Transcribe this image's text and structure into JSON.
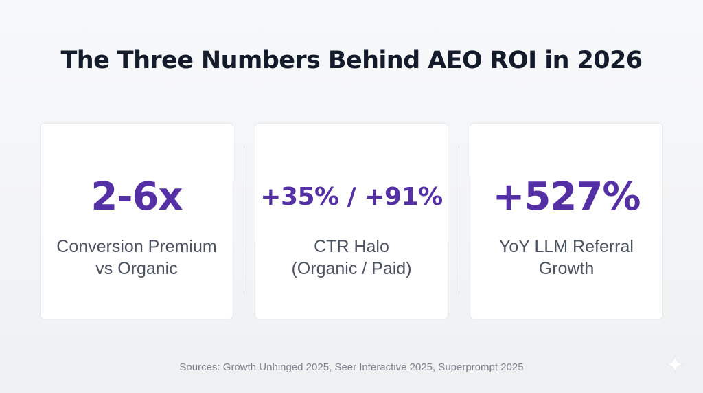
{
  "title": "The Three Numbers Behind AEO ROI in 2026",
  "stats": [
    {
      "value": "2-6x",
      "label_lines": [
        "Conversion Premium",
        "vs Organic"
      ]
    },
    {
      "value": "+35% / +91%",
      "label_lines": [
        "CTR Halo",
        "(Organic / Paid)"
      ]
    },
    {
      "value": "+527%",
      "label_lines": [
        "YoY LLM Referral",
        "Growth"
      ]
    }
  ],
  "sources": "Sources: Growth Unhinged 2025, Seer Interactive 2025, Superprompt 2025",
  "colors": {
    "title": "#141c2b",
    "accent": "#5430a4",
    "label": "#4b5260",
    "sources": "#7b818c",
    "card_background": "#ffffff",
    "card_border": "#e5e7eb"
  },
  "icons": {
    "corner": "sparkle-icon"
  }
}
